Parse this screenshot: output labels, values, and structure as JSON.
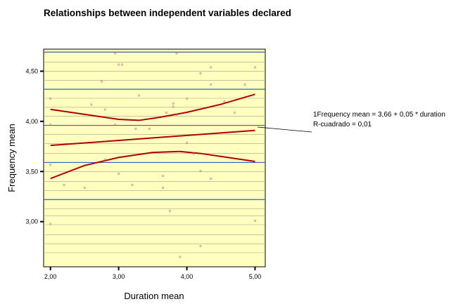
{
  "chart_data": {
    "type": "scatter",
    "title": "Relationships between independent variables declared",
    "xlabel": "Duration mean",
    "ylabel": "Frequency mean",
    "xlim": [
      1.9,
      5.15
    ],
    "ylim": [
      2.55,
      4.72
    ],
    "x_ticks": [
      {
        "value": 2,
        "label": "2,00"
      },
      {
        "value": 3,
        "label": "3,00"
      },
      {
        "value": 4,
        "label": "4,00"
      },
      {
        "value": 5,
        "label": "5,00"
      }
    ],
    "y_ticks": [
      {
        "value": 3,
        "label": "3,00"
      },
      {
        "value": 3.5,
        "label": "3,50"
      },
      {
        "value": 4,
        "label": "4,00"
      },
      {
        "value": 4.5,
        "label": "4,50"
      }
    ],
    "grid_y": [
      2.69,
      2.78,
      2.87,
      2.97,
      3.06,
      3.13,
      3.22,
      3.31,
      3.4,
      3.5,
      3.59,
      3.68,
      3.78,
      3.87,
      3.96,
      4.05,
      4.14,
      4.23,
      4.32,
      4.41,
      4.5,
      4.59,
      4.69
    ],
    "grid_y_major": [
      3.22,
      3.59,
      3.96,
      4.32,
      4.69
    ],
    "point_marker": "º",
    "points": [
      [
        2.0,
        4.22
      ],
      [
        2.0,
        3.96
      ],
      [
        2.0,
        3.56
      ],
      [
        2.0,
        2.97
      ],
      [
        2.2,
        3.36
      ],
      [
        2.5,
        3.33
      ],
      [
        2.6,
        4.16
      ],
      [
        2.75,
        4.39
      ],
      [
        2.8,
        4.11
      ],
      [
        2.8,
        3.61
      ],
      [
        2.95,
        4.67
      ],
      [
        2.95,
        3.96
      ],
      [
        3.0,
        4.56
      ],
      [
        3.05,
        4.56
      ],
      [
        3.0,
        3.47
      ],
      [
        3.2,
        3.36
      ],
      [
        3.25,
        3.92
      ],
      [
        3.3,
        4.25
      ],
      [
        3.45,
        3.92
      ],
      [
        3.65,
        3.45
      ],
      [
        3.65,
        3.33
      ],
      [
        3.7,
        4.08
      ],
      [
        3.75,
        3.1
      ],
      [
        3.8,
        4.17
      ],
      [
        3.8,
        4.14
      ],
      [
        3.85,
        4.67
      ],
      [
        3.85,
        4.06
      ],
      [
        3.9,
        2.64
      ],
      [
        4.0,
        4.22
      ],
      [
        4.0,
        3.78
      ],
      [
        4.1,
        3.67
      ],
      [
        4.2,
        4.47
      ],
      [
        4.2,
        3.5
      ],
      [
        4.2,
        2.75
      ],
      [
        4.35,
        4.53
      ],
      [
        4.35,
        4.36
      ],
      [
        4.35,
        3.42
      ],
      [
        4.55,
        4.19
      ],
      [
        4.7,
        4.08
      ],
      [
        4.85,
        4.36
      ],
      [
        5.0,
        4.53
      ],
      [
        5.0,
        3.0
      ]
    ],
    "fit_line": {
      "intercept": 3.66,
      "slope": 0.05,
      "x_range": [
        2.0,
        5.0
      ]
    },
    "ci_upper": [
      [
        2.0,
        4.12
      ],
      [
        2.5,
        4.07
      ],
      [
        3.0,
        4.02
      ],
      [
        3.3,
        4.01
      ],
      [
        3.6,
        4.04
      ],
      [
        4.0,
        4.09
      ],
      [
        4.5,
        4.17
      ],
      [
        5.0,
        4.27
      ]
    ],
    "ci_lower": [
      [
        2.0,
        3.43
      ],
      [
        2.5,
        3.56
      ],
      [
        3.0,
        3.64
      ],
      [
        3.5,
        3.69
      ],
      [
        3.9,
        3.7
      ],
      [
        4.2,
        3.68
      ],
      [
        4.6,
        3.64
      ],
      [
        5.0,
        3.6
      ]
    ],
    "annotation": {
      "line1": "1Frequency mean = 3,66 + 0,05 * duration",
      "line2": "R-cuadrado = 0,01"
    },
    "colors": {
      "plot_bg": "#ffffc0",
      "grid_minor": "#a0a0a0",
      "grid_major": "#3b5cc4",
      "fit": "#b00000",
      "point": "#c06070"
    },
    "grid": true,
    "legend": "none"
  }
}
